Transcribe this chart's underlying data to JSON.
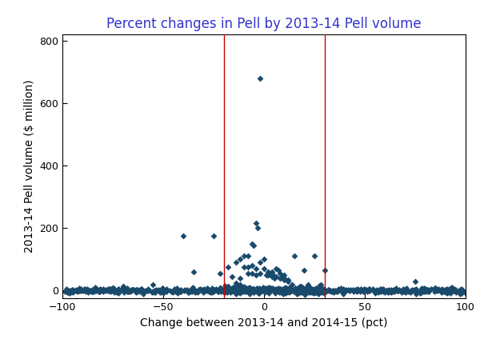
{
  "title": "Percent changes in Pell by 2013-14 Pell volume",
  "xlabel": "Change between 2013-14 and 2014-15 (pct)",
  "ylabel": "2013-14 Pell volume ($ million)",
  "xlim": [
    -100,
    100
  ],
  "ylim": [
    -25,
    820
  ],
  "xticks": [
    -100,
    -50,
    0,
    50,
    100
  ],
  "yticks": [
    0,
    200,
    400,
    600,
    800
  ],
  "vline1": -20,
  "vline2": 30,
  "vline_color": "#cc0000",
  "marker_color": "#1a4a6b",
  "marker_style": "D",
  "marker_size": 3.5,
  "background_color": "#ffffff",
  "title_color": "#3333cc",
  "title_fontsize": 12,
  "axis_label_fontsize": 10,
  "tick_fontsize": 9,
  "seed": 42,
  "cluster_points": [
    [
      -2,
      680
    ],
    [
      -4,
      215
    ],
    [
      -3,
      200
    ],
    [
      -6,
      150
    ],
    [
      -5,
      145
    ],
    [
      -25,
      175
    ],
    [
      -40,
      175
    ],
    [
      -10,
      110
    ],
    [
      -8,
      110
    ],
    [
      15,
      110
    ],
    [
      25,
      110
    ],
    [
      -12,
      100
    ],
    [
      0,
      100
    ],
    [
      -14,
      90
    ],
    [
      -2,
      90
    ],
    [
      -6,
      80
    ],
    [
      -18,
      75
    ],
    [
      -8,
      75
    ],
    [
      -10,
      75
    ],
    [
      30,
      65
    ],
    [
      20,
      65
    ],
    [
      0,
      70
    ],
    [
      -4,
      70
    ],
    [
      6,
      70
    ],
    [
      7,
      65
    ],
    [
      4,
      60
    ],
    [
      2,
      60
    ],
    [
      8,
      55
    ],
    [
      -2,
      55
    ],
    [
      4,
      55
    ],
    [
      -22,
      55
    ],
    [
      -8,
      55
    ],
    [
      -6,
      55
    ],
    [
      3,
      55
    ],
    [
      1,
      50
    ],
    [
      -4,
      50
    ],
    [
      10,
      50
    ],
    [
      2,
      50
    ],
    [
      -16,
      45
    ],
    [
      5,
      45
    ],
    [
      9,
      45
    ],
    [
      4,
      45
    ],
    [
      6,
      45
    ],
    [
      -12,
      40
    ],
    [
      10,
      40
    ],
    [
      5,
      40
    ],
    [
      8,
      40
    ],
    [
      12,
      35
    ],
    [
      10,
      35
    ],
    [
      -35,
      60
    ],
    [
      28,
      20
    ],
    [
      22,
      18
    ],
    [
      18,
      15
    ],
    [
      14,
      20
    ],
    [
      12,
      30
    ],
    [
      -14,
      25
    ],
    [
      -12,
      20
    ],
    [
      -18,
      15
    ],
    [
      -15,
      12
    ],
    [
      -22,
      8
    ],
    [
      75,
      30
    ],
    [
      80,
      5
    ],
    [
      93,
      10
    ],
    [
      -55,
      20
    ],
    [
      -70,
      15
    ],
    [
      -75,
      10
    ],
    [
      -85,
      3
    ],
    [
      -90,
      2
    ],
    [
      85,
      8
    ],
    [
      90,
      3
    ],
    [
      95,
      5
    ]
  ],
  "n_dense_full": 800,
  "n_dense_cluster": 400
}
